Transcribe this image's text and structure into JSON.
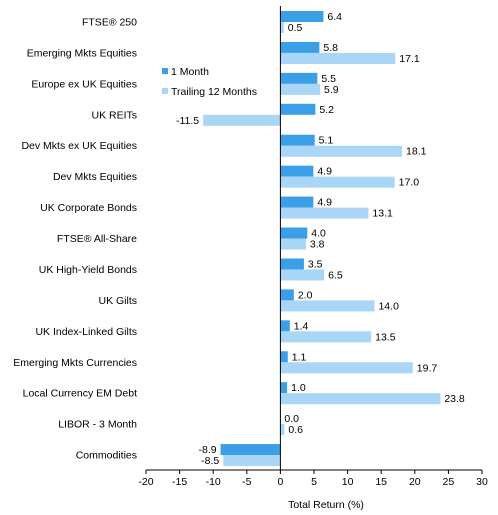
{
  "chart_data": {
    "type": "bar",
    "orientation": "horizontal",
    "categories": [
      "FTSE® 250",
      "Emerging Mkts Equities",
      "Europe ex UK Equities",
      "UK REITs",
      "Dev Mkts ex UK Equities",
      "Dev Mkts Equities",
      "UK Corporate Bonds",
      "FTSE® All-Share",
      "UK High-Yield Bonds",
      "UK Gilts",
      "UK Index-Linked Gilts",
      "Emerging Mkts Currencies",
      "Local Currency EM Debt",
      "LIBOR - 3 Month",
      "Commodities"
    ],
    "series": [
      {
        "name": "1 Month",
        "color": "#3a9fe6",
        "values": [
          6.4,
          5.8,
          5.5,
          5.2,
          5.1,
          4.9,
          4.9,
          4.0,
          3.5,
          2.0,
          1.4,
          1.1,
          1.0,
          0.0,
          -8.9
        ],
        "labels": [
          "6.4",
          "5.8",
          "5.5",
          "5.2",
          "5.1",
          "4.9",
          "4.9",
          "4.0",
          "3.5",
          "2.0",
          "1.4",
          "1.1",
          "1.0",
          "0.0",
          "-8.9"
        ]
      },
      {
        "name": "Trailing 12 Months",
        "color": "#a9d5f7",
        "values": [
          0.5,
          17.1,
          5.9,
          -11.5,
          18.1,
          17.0,
          13.1,
          3.8,
          6.5,
          14.0,
          13.5,
          19.7,
          23.8,
          0.6,
          -8.5
        ],
        "labels": [
          "0.5",
          "17.1",
          "5.9",
          "-11.5",
          "18.1",
          "17.0",
          "13.1",
          "3.8",
          "6.5",
          "14.0",
          "13.5",
          "19.7",
          "23.8",
          "0.6",
          "-8.5"
        ]
      }
    ],
    "xlabel": "Total Return (%)",
    "xlim": [
      -20,
      30
    ],
    "xticks": [
      -20,
      -15,
      -10,
      -5,
      0,
      5,
      10,
      15,
      20,
      25,
      30
    ],
    "xtick_labels": [
      "-20",
      "-15",
      "-10",
      "-5",
      "0",
      "5",
      "10",
      "15",
      "20",
      "25",
      "30"
    ],
    "grid": false,
    "legend_position": "upper-left inside plot"
  }
}
